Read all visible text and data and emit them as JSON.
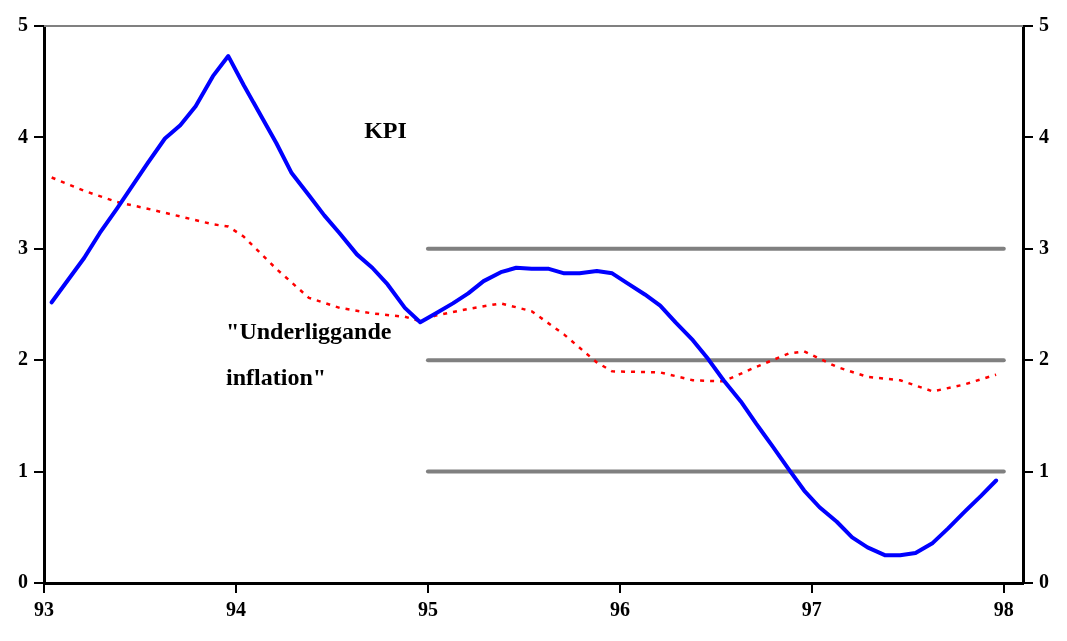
{
  "chart_data": {
    "type": "line",
    "xlim": [
      93,
      98.1
    ],
    "xticks": [
      93,
      94,
      95,
      96,
      97,
      98
    ],
    "ylim": [
      0,
      5
    ],
    "yticks": [
      0,
      1,
      2,
      3,
      4,
      5
    ],
    "y2lim": [
      0,
      5
    ],
    "y2ticks": [
      0,
      1,
      2,
      3,
      4,
      5
    ],
    "grid": false,
    "legend": false,
    "marker": "none",
    "annotations": [
      "KPI",
      "\"Underliggande inflation\""
    ],
    "series": [
      {
        "color": "#0000ff",
        "line_style": "solid",
        "x": [
          93.04,
          93.21,
          93.29,
          93.38,
          93.54,
          93.63,
          93.71,
          93.79,
          93.88,
          93.96,
          94.04,
          94.21,
          94.29,
          94.38,
          94.46,
          94.54,
          94.63,
          94.71,
          94.79,
          94.88,
          94.96,
          95.04,
          95.13,
          95.21,
          95.29,
          95.38,
          95.46,
          95.54,
          95.63,
          95.71,
          95.79,
          95.88,
          95.96,
          96.04,
          96.13,
          96.21,
          96.29,
          96.38,
          96.46,
          96.54,
          96.63,
          96.71,
          96.79,
          96.88,
          96.96,
          97.04,
          97.13,
          97.21,
          97.29,
          97.38,
          97.46,
          97.54,
          97.63,
          97.71,
          97.79,
          97.88,
          97.96
        ],
        "values": [
          2.52,
          2.92,
          3.14,
          3.36,
          3.77,
          3.99,
          4.11,
          4.28,
          4.55,
          4.73,
          4.47,
          3.95,
          3.68,
          3.48,
          3.3,
          3.14,
          2.95,
          2.83,
          2.68,
          2.47,
          2.34,
          2.42,
          2.51,
          2.6,
          2.71,
          2.79,
          2.83,
          2.82,
          2.82,
          2.78,
          2.78,
          2.8,
          2.78,
          2.69,
          2.59,
          2.49,
          2.34,
          2.18,
          2.01,
          1.82,
          1.63,
          1.43,
          1.24,
          1.02,
          0.83,
          0.68,
          0.55,
          0.41,
          0.32,
          0.25,
          0.25,
          0.27,
          0.36,
          0.49,
          0.63,
          0.78,
          0.92
        ]
      },
      {
        "color": "#ff0000",
        "line_style": "dotted",
        "x": [
          93.04,
          93.21,
          93.38,
          93.54,
          93.71,
          93.88,
          93.96,
          94.04,
          94.21,
          94.38,
          94.54,
          94.71,
          94.88,
          94.96,
          95.04,
          95.21,
          95.38,
          95.54,
          95.71,
          95.88,
          95.96,
          96.21,
          96.38,
          96.54,
          96.71,
          96.88,
          96.96,
          97.13,
          97.29,
          97.46,
          97.63,
          97.79,
          97.96
        ],
        "values": [
          3.64,
          3.52,
          3.42,
          3.36,
          3.29,
          3.22,
          3.2,
          3.11,
          2.82,
          2.56,
          2.47,
          2.42,
          2.39,
          2.35,
          2.4,
          2.46,
          2.51,
          2.44,
          2.23,
          1.98,
          1.9,
          1.89,
          1.82,
          1.81,
          1.94,
          2.06,
          2.08,
          1.94,
          1.85,
          1.82,
          1.72,
          1.78,
          1.87
        ]
      },
      {
        "color": "#808080",
        "line_style": "solid",
        "x": [
          95,
          98
        ],
        "values": [
          3,
          3
        ]
      },
      {
        "color": "#808080",
        "line_style": "solid",
        "x": [
          95,
          98
        ],
        "values": [
          2,
          2
        ]
      },
      {
        "color": "#808080",
        "line_style": "solid",
        "x": [
          95,
          98
        ],
        "values": [
          1,
          1
        ]
      }
    ]
  }
}
